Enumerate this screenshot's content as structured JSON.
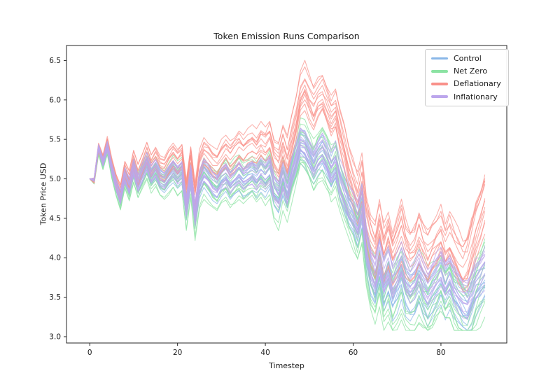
{
  "chart_data": {
    "type": "line",
    "title": "Token Emission Runs Comparison",
    "xlabel": "Timestep",
    "ylabel": "Token Price USD",
    "grid": false,
    "legend_position": "upper right",
    "xlim": [
      -5.3,
      95.0
    ],
    "ylim": [
      2.92,
      6.69
    ],
    "xticks": [
      "0",
      "20",
      "40",
      "60",
      "80"
    ],
    "yticks": [
      "3.0",
      "3.5",
      "4.0",
      "4.5",
      "5.0",
      "5.5",
      "6.0",
      "6.5"
    ],
    "timestep_start": 0,
    "timestep_end": 90,
    "runs_per_scenario": 12,
    "line_alpha": 0.7,
    "spread_base": 0.2,
    "series": [
      {
        "name": "Control",
        "color": "#89B7E8",
        "spread_factor": 1.0,
        "mean": [
          5.0,
          4.98,
          5.38,
          5.2,
          5.4,
          5.12,
          4.9,
          4.74,
          5.02,
          4.88,
          5.12,
          4.92,
          5.05,
          5.18,
          5.02,
          5.1,
          4.98,
          4.94,
          5.03,
          5.1,
          5.02,
          5.08,
          4.62,
          5.02,
          4.52,
          4.92,
          5.06,
          5.0,
          4.92,
          4.88,
          4.97,
          5.02,
          4.92,
          4.98,
          5.04,
          4.96,
          5.0,
          5.04,
          4.98,
          5.06,
          5.0,
          5.08,
          4.84,
          4.76,
          4.98,
          4.8,
          5.04,
          5.22,
          5.42,
          5.38,
          5.26,
          5.14,
          5.26,
          5.32,
          5.2,
          5.06,
          5.16,
          4.92,
          4.76,
          4.6,
          4.5,
          4.35,
          4.6,
          4.05,
          3.75,
          3.6,
          3.86,
          3.56,
          3.72,
          3.5,
          3.62,
          3.76,
          3.56,
          3.46,
          3.52,
          3.66,
          3.52,
          3.42,
          3.52,
          3.62,
          3.72,
          3.56,
          3.66,
          3.52,
          3.42,
          3.32,
          3.26,
          3.38,
          3.52,
          3.58,
          3.66
        ]
      },
      {
        "name": "Net Zero",
        "color": "#8CE3A3",
        "spread_factor": 1.6,
        "mean": [
          5.0,
          4.97,
          5.37,
          5.19,
          5.39,
          5.1,
          4.88,
          4.71,
          5.0,
          4.85,
          5.1,
          4.9,
          5.03,
          5.16,
          5.0,
          5.08,
          4.96,
          4.92,
          5.01,
          5.08,
          5.0,
          5.06,
          4.58,
          5.0,
          4.48,
          4.9,
          5.04,
          4.98,
          4.9,
          4.86,
          4.95,
          5.0,
          4.9,
          4.96,
          5.02,
          4.94,
          4.98,
          5.02,
          4.96,
          5.04,
          4.98,
          5.06,
          4.81,
          4.73,
          4.96,
          4.77,
          5.02,
          5.22,
          5.44,
          5.4,
          5.27,
          5.13,
          5.25,
          5.31,
          5.18,
          5.04,
          5.15,
          4.9,
          4.74,
          4.57,
          4.47,
          4.32,
          4.57,
          4.02,
          3.73,
          3.58,
          3.84,
          3.54,
          3.7,
          3.48,
          3.6,
          3.74,
          3.54,
          3.44,
          3.5,
          3.64,
          3.5,
          3.4,
          3.5,
          3.6,
          3.7,
          3.54,
          3.64,
          3.5,
          3.4,
          3.3,
          3.24,
          3.36,
          3.54,
          3.66,
          3.78
        ]
      },
      {
        "name": "Deflationary",
        "color": "#F9918A",
        "spread_factor": 1.3,
        "mean": [
          5.0,
          4.98,
          5.4,
          5.24,
          5.45,
          5.18,
          4.97,
          4.82,
          5.11,
          4.98,
          5.23,
          5.04,
          5.18,
          5.32,
          5.17,
          5.26,
          5.15,
          5.12,
          5.22,
          5.3,
          5.23,
          5.3,
          4.85,
          5.26,
          4.77,
          5.18,
          5.33,
          5.28,
          5.21,
          5.18,
          5.28,
          5.35,
          5.26,
          5.33,
          5.4,
          5.33,
          5.38,
          5.43,
          5.38,
          5.47,
          5.42,
          5.51,
          5.28,
          5.21,
          5.44,
          5.27,
          5.52,
          5.75,
          6.05,
          6.15,
          6.0,
          5.88,
          6.02,
          6.08,
          5.94,
          5.8,
          5.88,
          5.62,
          5.4,
          5.15,
          4.95,
          4.78,
          5.0,
          4.5,
          4.25,
          4.12,
          4.4,
          4.1,
          4.28,
          4.05,
          4.2,
          4.36,
          4.15,
          4.03,
          4.1,
          4.28,
          4.12,
          4.0,
          4.12,
          4.22,
          4.32,
          4.14,
          4.26,
          4.1,
          3.98,
          3.88,
          3.95,
          4.15,
          4.35,
          4.52,
          4.7
        ]
      },
      {
        "name": "Inflationary",
        "color": "#BCA6EC",
        "spread_factor": 1.0,
        "mean": [
          5.0,
          4.99,
          5.4,
          5.21,
          5.41,
          5.13,
          4.92,
          4.76,
          5.04,
          4.9,
          5.14,
          4.94,
          5.08,
          5.21,
          5.05,
          5.13,
          5.01,
          4.97,
          5.06,
          5.13,
          5.05,
          5.11,
          4.66,
          5.05,
          4.56,
          4.96,
          5.1,
          5.04,
          4.96,
          4.92,
          5.01,
          5.06,
          4.96,
          5.02,
          5.08,
          5.0,
          5.04,
          5.08,
          5.02,
          5.1,
          5.05,
          5.13,
          4.89,
          4.81,
          5.03,
          4.85,
          5.09,
          5.27,
          5.47,
          5.43,
          5.31,
          5.19,
          5.31,
          5.37,
          5.25,
          5.11,
          5.21,
          4.97,
          4.82,
          4.67,
          4.58,
          4.44,
          4.68,
          4.15,
          3.87,
          3.74,
          3.99,
          3.7,
          3.86,
          3.65,
          3.77,
          3.91,
          3.72,
          3.62,
          3.68,
          3.82,
          3.68,
          3.59,
          3.69,
          3.79,
          3.89,
          3.74,
          3.84,
          3.7,
          3.61,
          3.52,
          3.47,
          3.6,
          3.74,
          3.82,
          3.92
        ]
      }
    ]
  }
}
